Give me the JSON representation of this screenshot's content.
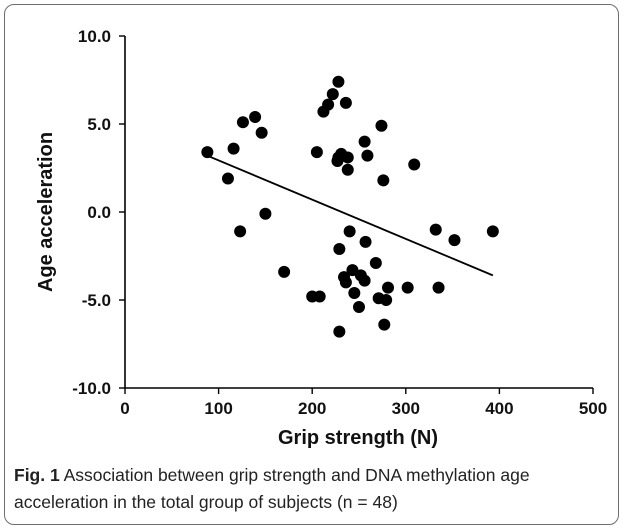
{
  "chart_data": {
    "type": "scatter",
    "xlabel": "Grip strength (N)",
    "ylabel": "Age acceleration",
    "xlim": [
      0,
      500
    ],
    "ylim": [
      -10,
      10
    ],
    "x_ticks": [
      "0",
      "100",
      "200",
      "300",
      "400",
      "500"
    ],
    "y_ticks": [
      "10.0",
      "5.0",
      "0.0",
      "-5.0",
      "-10.0"
    ],
    "grid": false,
    "legend": "none",
    "points": [
      {
        "x": 88,
        "y": 3.4
      },
      {
        "x": 110,
        "y": 1.9
      },
      {
        "x": 116,
        "y": 3.6
      },
      {
        "x": 123,
        "y": -1.1
      },
      {
        "x": 126,
        "y": 5.1
      },
      {
        "x": 139,
        "y": 5.4
      },
      {
        "x": 146,
        "y": 4.5
      },
      {
        "x": 150,
        "y": -0.1
      },
      {
        "x": 170,
        "y": -3.4
      },
      {
        "x": 200,
        "y": -4.8
      },
      {
        "x": 205,
        "y": 3.4
      },
      {
        "x": 208,
        "y": -4.8
      },
      {
        "x": 212,
        "y": 5.7
      },
      {
        "x": 217,
        "y": 6.1
      },
      {
        "x": 222,
        "y": 6.7
      },
      {
        "x": 228,
        "y": 7.4
      },
      {
        "x": 227,
        "y": 2.9
      },
      {
        "x": 228,
        "y": 3.1
      },
      {
        "x": 231,
        "y": 3.3
      },
      {
        "x": 229,
        "y": -2.1
      },
      {
        "x": 236,
        "y": 6.2
      },
      {
        "x": 238,
        "y": 2.4
      },
      {
        "x": 238,
        "y": 3.1
      },
      {
        "x": 240,
        "y": -1.1
      },
      {
        "x": 234,
        "y": -3.7
      },
      {
        "x": 236,
        "y": -4.0
      },
      {
        "x": 243,
        "y": -3.3
      },
      {
        "x": 245,
        "y": -4.6
      },
      {
        "x": 252,
        "y": -3.6
      },
      {
        "x": 256,
        "y": -3.9
      },
      {
        "x": 250,
        "y": -5.4
      },
      {
        "x": 229,
        "y": -6.8
      },
      {
        "x": 256,
        "y": 4.0
      },
      {
        "x": 259,
        "y": 3.2
      },
      {
        "x": 257,
        "y": -1.7
      },
      {
        "x": 268,
        "y": -2.9
      },
      {
        "x": 271,
        "y": -4.9
      },
      {
        "x": 274,
        "y": 4.9
      },
      {
        "x": 276,
        "y": 1.8
      },
      {
        "x": 277,
        "y": -6.4
      },
      {
        "x": 279,
        "y": -5.0
      },
      {
        "x": 281,
        "y": -4.3
      },
      {
        "x": 302,
        "y": -4.3
      },
      {
        "x": 309,
        "y": 2.7
      },
      {
        "x": 332,
        "y": -1.0
      },
      {
        "x": 335,
        "y": -4.3
      },
      {
        "x": 352,
        "y": -1.6
      },
      {
        "x": 393,
        "y": -1.1
      }
    ],
    "trendline": {
      "x": [
        88,
        393
      ],
      "y": [
        3.2,
        -3.6
      ]
    },
    "colors": {
      "marker": "#000000",
      "trendline": "#000000"
    }
  },
  "caption": {
    "label": "Fig. 1",
    "text": " Association between grip strength and DNA methylation age acceleration in the total group of subjects (n = 48)"
  }
}
